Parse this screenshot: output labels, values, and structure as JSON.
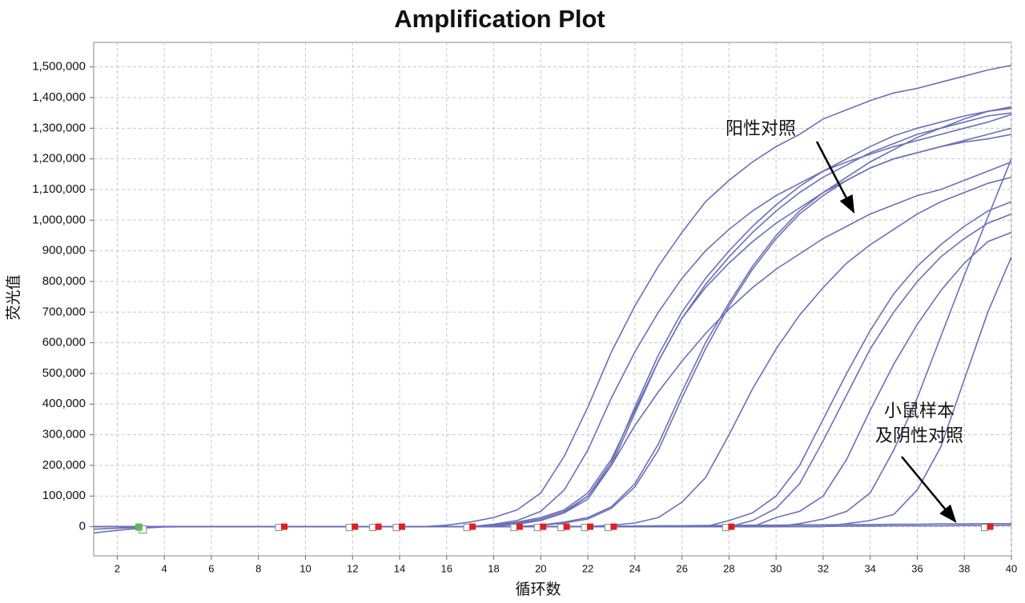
{
  "chart_data": {
    "type": "line",
    "title": "Amplification Plot",
    "x_label": "循环数",
    "y_label": "荧光值",
    "x": [
      1,
      2,
      3,
      4,
      5,
      6,
      7,
      8,
      9,
      10,
      11,
      12,
      13,
      14,
      15,
      16,
      17,
      18,
      19,
      20,
      21,
      22,
      23,
      24,
      25,
      26,
      27,
      28,
      29,
      30,
      31,
      32,
      33,
      34,
      35,
      36,
      37,
      38,
      39,
      40
    ],
    "xlim": [
      1,
      40
    ],
    "xticks": [
      2,
      4,
      6,
      8,
      10,
      12,
      14,
      16,
      18,
      20,
      22,
      24,
      26,
      28,
      30,
      32,
      34,
      36,
      38,
      40
    ],
    "ylim": [
      -95000,
      1580000
    ],
    "yticks": [
      0,
      {
        "value": 100000,
        "label": "100,000"
      },
      {
        "value": 200000,
        "label": "200,000"
      },
      {
        "value": 300000,
        "label": "300,000"
      },
      {
        "value": 400000,
        "label": "400,000"
      },
      {
        "value": 500000,
        "label": "500,000"
      },
      {
        "value": 600000,
        "label": "600,000"
      },
      {
        "value": 700000,
        "label": "700,000"
      },
      {
        "value": 800000,
        "label": "800,000"
      },
      {
        "value": 900000,
        "label": "900,000"
      },
      {
        "value": 1000000,
        "label": "1,000,000"
      },
      {
        "value": 1100000,
        "label": "1,100,000"
      },
      {
        "value": 1200000,
        "label": "1,200,000"
      },
      {
        "value": 1300000,
        "label": "1,300,000"
      },
      {
        "value": 1400000,
        "label": "1,400,000"
      },
      {
        "value": 1500000,
        "label": "1,500,000"
      }
    ],
    "grid": true,
    "series": [
      {
        "color": "#6b70b8",
        "values": [
          0,
          0,
          0,
          0,
          0,
          0,
          0,
          0,
          0,
          0,
          0,
          0,
          0,
          0,
          0,
          5000,
          15000,
          30000,
          55000,
          110000,
          230000,
          390000,
          570000,
          720000,
          850000,
          960000,
          1060000,
          1130000,
          1190000,
          1240000,
          1280000,
          1330000,
          1360000,
          1390000,
          1415000,
          1430000,
          1450000,
          1470000,
          1490000,
          1505000
        ]
      },
      {
        "color": "#6b70b8",
        "values": [
          0,
          0,
          0,
          0,
          0,
          0,
          0,
          0,
          0,
          0,
          0,
          0,
          0,
          0,
          0,
          0,
          0,
          8000,
          20000,
          50000,
          120000,
          250000,
          420000,
          570000,
          700000,
          810000,
          900000,
          970000,
          1030000,
          1080000,
          1120000,
          1160000,
          1190000,
          1215000,
          1240000,
          1260000,
          1280000,
          1300000,
          1320000,
          1345000
        ]
      },
      {
        "color": "#6b70b8",
        "values": [
          0,
          0,
          0,
          0,
          0,
          0,
          0,
          0,
          0,
          0,
          0,
          0,
          0,
          0,
          0,
          0,
          0,
          5000,
          15000,
          30000,
          55000,
          110000,
          220000,
          380000,
          540000,
          680000,
          790000,
          880000,
          960000,
          1030000,
          1090000,
          1140000,
          1180000,
          1220000,
          1250000,
          1280000,
          1300000,
          1320000,
          1340000,
          1350000
        ]
      },
      {
        "color": "#6b70b8",
        "values": [
          0,
          0,
          0,
          0,
          0,
          0,
          0,
          0,
          0,
          0,
          0,
          0,
          0,
          0,
          0,
          0,
          0,
          4000,
          12000,
          25000,
          50000,
          100000,
          210000,
          390000,
          560000,
          700000,
          810000,
          900000,
          980000,
          1050000,
          1110000,
          1160000,
          1200000,
          1240000,
          1275000,
          1300000,
          1320000,
          1340000,
          1355000,
          1370000
        ]
      },
      {
        "color": "#6b70b8",
        "values": [
          0,
          0,
          0,
          0,
          0,
          0,
          0,
          0,
          0,
          0,
          0,
          0,
          0,
          0,
          0,
          0,
          0,
          3000,
          10000,
          20000,
          45000,
          90000,
          200000,
          370000,
          540000,
          680000,
          780000,
          860000,
          930000,
          990000,
          1040000,
          1090000,
          1130000,
          1170000,
          1200000,
          1220000,
          1240000,
          1255000,
          1265000,
          1280000
        ]
      },
      {
        "color": "#6b70b8",
        "values": [
          0,
          0,
          0,
          0,
          0,
          0,
          0,
          0,
          0,
          0,
          0,
          0,
          0,
          0,
          0,
          0,
          0,
          3000,
          8000,
          20000,
          45000,
          100000,
          200000,
          330000,
          440000,
          540000,
          630000,
          710000,
          780000,
          840000,
          890000,
          940000,
          980000,
          1020000,
          1050000,
          1080000,
          1100000,
          1130000,
          1160000,
          1190000
        ]
      },
      {
        "color": "#6b70b8",
        "values": [
          0,
          0,
          0,
          0,
          0,
          0,
          0,
          0,
          0,
          0,
          0,
          0,
          0,
          0,
          0,
          0,
          0,
          0,
          0,
          5000,
          15000,
          30000,
          65000,
          140000,
          270000,
          440000,
          600000,
          730000,
          850000,
          950000,
          1030000,
          1090000,
          1140000,
          1190000,
          1230000,
          1270000,
          1300000,
          1330000,
          1355000,
          1365000
        ]
      },
      {
        "color": "#6b70b8",
        "values": [
          0,
          0,
          0,
          0,
          0,
          0,
          0,
          0,
          0,
          0,
          0,
          0,
          0,
          0,
          0,
          0,
          0,
          0,
          0,
          4000,
          12000,
          25000,
          60000,
          130000,
          250000,
          420000,
          580000,
          720000,
          840000,
          940000,
          1020000,
          1080000,
          1130000,
          1170000,
          1200000,
          1220000,
          1240000,
          1260000,
          1280000,
          1300000
        ]
      },
      {
        "color": "#6b70b8",
        "values": [
          0,
          0,
          0,
          0,
          0,
          0,
          0,
          0,
          0,
          0,
          0,
          0,
          0,
          0,
          0,
          0,
          0,
          0,
          0,
          0,
          0,
          0,
          5000,
          12000,
          30000,
          80000,
          160000,
          300000,
          450000,
          580000,
          690000,
          780000,
          860000,
          920000,
          970000,
          1020000,
          1060000,
          1090000,
          1120000,
          1140000
        ]
      },
      {
        "color": "#6b70b8",
        "values": [
          0,
          0,
          0,
          0,
          0,
          0,
          0,
          0,
          0,
          0,
          0,
          0,
          0,
          0,
          0,
          0,
          0,
          0,
          0,
          0,
          0,
          0,
          0,
          0,
          0,
          0,
          0,
          20000,
          45000,
          100000,
          200000,
          350000,
          500000,
          640000,
          760000,
          850000,
          920000,
          980000,
          1030000,
          1060000
        ]
      },
      {
        "color": "#6b70b8",
        "values": [
          0,
          0,
          0,
          0,
          0,
          0,
          0,
          0,
          0,
          0,
          0,
          0,
          0,
          0,
          0,
          0,
          0,
          0,
          0,
          0,
          0,
          0,
          0,
          0,
          0,
          0,
          0,
          0,
          20000,
          60000,
          140000,
          280000,
          430000,
          580000,
          700000,
          800000,
          880000,
          940000,
          990000,
          1020000
        ]
      },
      {
        "color": "#6b70b8",
        "values": [
          0,
          0,
          0,
          0,
          0,
          0,
          0,
          0,
          0,
          0,
          0,
          0,
          0,
          0,
          0,
          0,
          0,
          0,
          0,
          0,
          0,
          0,
          0,
          0,
          0,
          0,
          0,
          0,
          0,
          30000,
          50000,
          100000,
          220000,
          380000,
          530000,
          660000,
          770000,
          860000,
          930000,
          960000
        ]
      },
      {
        "color": "#6b70b8",
        "values": [
          0,
          0,
          0,
          0,
          0,
          0,
          0,
          0,
          0,
          0,
          0,
          0,
          0,
          0,
          0,
          0,
          0,
          0,
          0,
          0,
          0,
          0,
          0,
          0,
          0,
          0,
          0,
          0,
          0,
          0,
          10000,
          25000,
          50000,
          110000,
          250000,
          420000,
          620000,
          820000,
          1010000,
          1200000
        ]
      },
      {
        "color": "#6b70b8",
        "values": [
          0,
          0,
          0,
          0,
          0,
          0,
          0,
          0,
          0,
          0,
          0,
          0,
          0,
          0,
          0,
          0,
          0,
          0,
          0,
          0,
          0,
          0,
          0,
          0,
          0,
          0,
          0,
          0,
          0,
          0,
          0,
          0,
          10000,
          20000,
          40000,
          120000,
          260000,
          480000,
          700000,
          880000
        ]
      },
      {
        "color": "#6b70b8",
        "values": [
          -20000,
          -12000,
          -5000,
          -1000,
          0,
          0,
          0,
          0,
          0,
          0,
          0,
          0,
          0,
          0,
          0,
          0,
          0,
          0,
          0,
          0,
          1000,
          1000,
          2000,
          2000,
          3000,
          3000,
          4000,
          4000,
          5000,
          5000,
          6000,
          6000,
          7000,
          7000,
          8000,
          8000,
          9000,
          9000,
          10000,
          10000
        ]
      },
      {
        "color": "#6b70b8",
        "values": [
          -8000,
          -5000,
          -2000,
          0,
          0,
          0,
          0,
          0,
          0,
          0,
          0,
          0,
          0,
          0,
          0,
          0,
          0,
          0,
          0,
          0,
          0,
          0,
          0,
          0,
          0,
          0,
          0,
          0,
          0,
          0,
          1000,
          1000,
          2000,
          2000,
          3000,
          3000,
          3000,
          4000,
          4000,
          5000
        ]
      }
    ],
    "threshold_markers": {
      "x": [
        9.1,
        12.1,
        13.1,
        14.1,
        17.1,
        19.1,
        20.1,
        21.1,
        22.1,
        23.1,
        28.1,
        39.1
      ],
      "color": "#e02020"
    },
    "start_marker": {
      "x": 2.9,
      "color": "#5cb85c"
    },
    "annotations": [
      {
        "lines": [
          "阳性对照"
        ]
      },
      {
        "lines": [
          "小鼠样本",
          "及阴性对照"
        ]
      }
    ]
  }
}
